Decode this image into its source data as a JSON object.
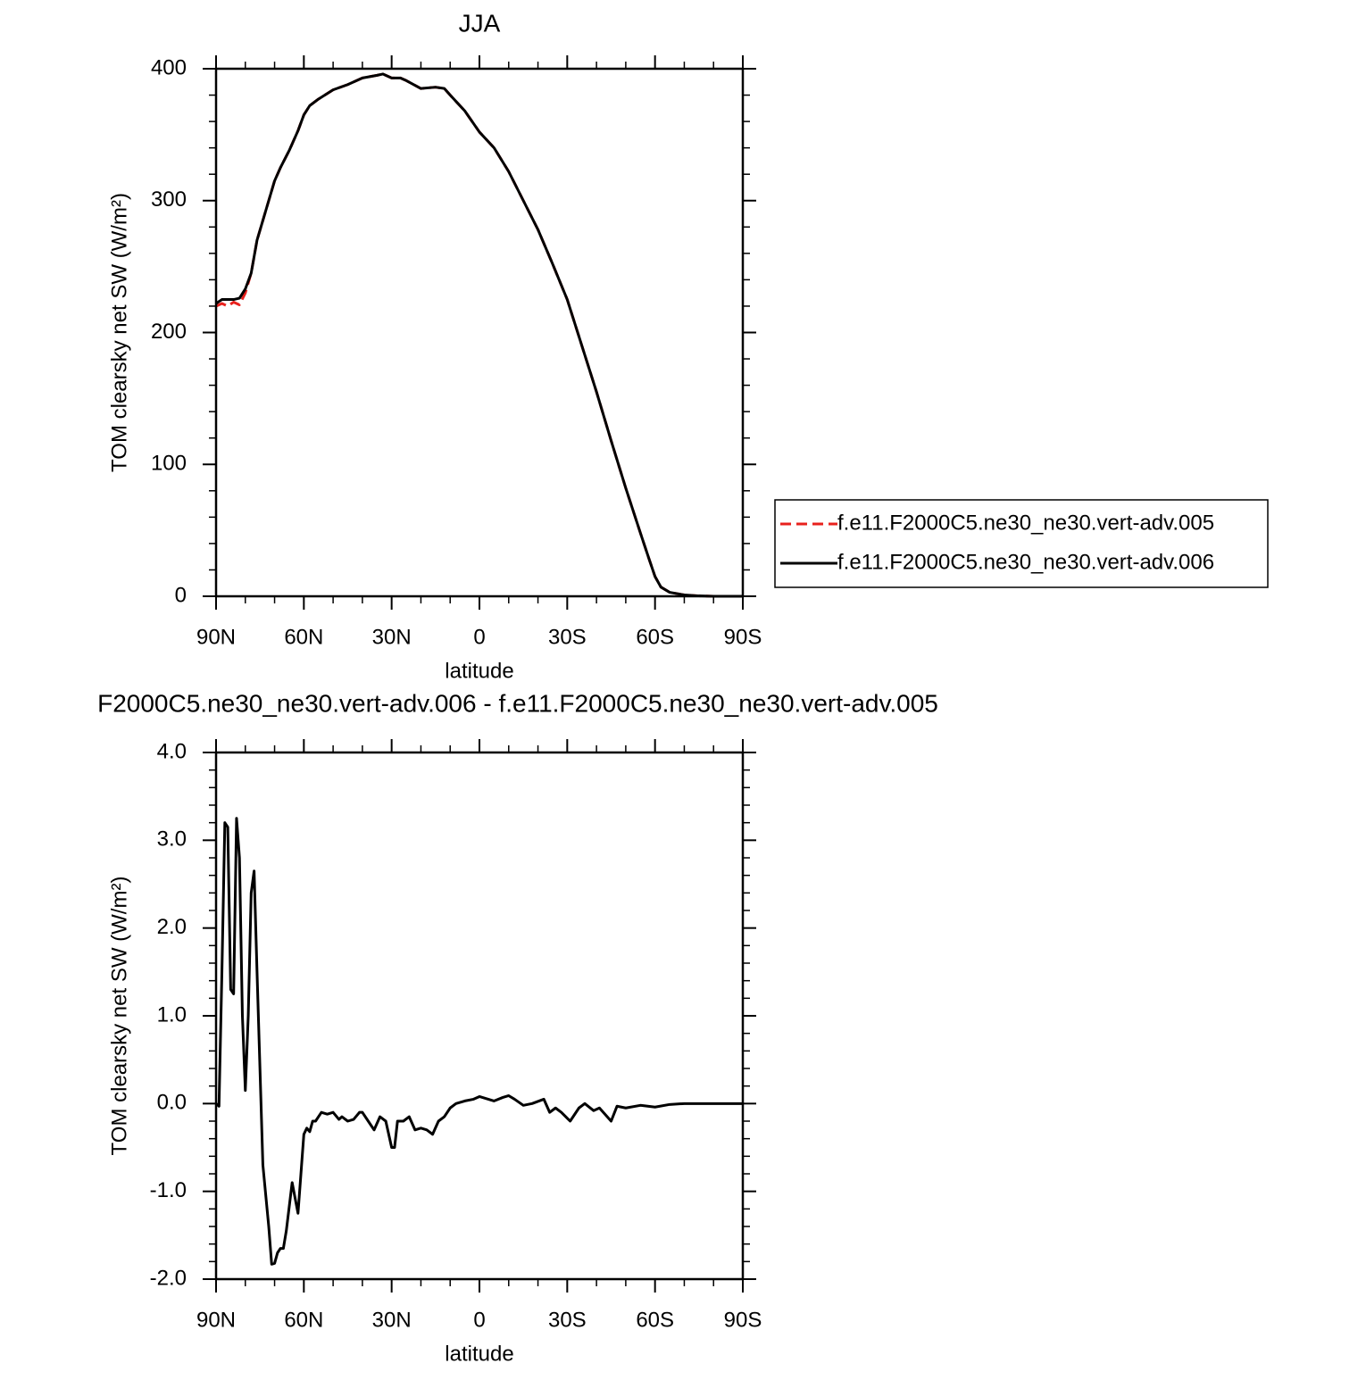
{
  "chart_data": [
    {
      "type": "line",
      "title": "JJA",
      "xlabel": "latitude",
      "ylabel": "TOM clearsky net SW (W/m²)",
      "x": [
        90,
        88,
        86,
        84,
        82,
        80,
        78,
        76,
        74,
        72,
        70,
        68,
        65,
        62,
        60,
        58,
        55,
        50,
        45,
        40,
        35,
        33,
        30,
        27,
        25,
        20,
        15,
        12,
        10,
        5,
        0,
        -5,
        -10,
        -15,
        -20,
        -25,
        -30,
        -35,
        -40,
        -45,
        -50,
        -55,
        -58,
        -60,
        -62,
        -65,
        -70,
        -75,
        -80,
        -85,
        -90
      ],
      "series": [
        {
          "name": "f.e11.F2000C5.ne30_ne30.vert-adv.005",
          "color": "#e8211d",
          "dashed": true,
          "values": [
            220,
            222,
            220,
            223,
            221,
            230,
            245,
            270,
            285,
            300,
            315,
            325,
            338,
            353,
            365,
            372,
            377,
            384,
            388,
            393,
            395,
            396,
            393,
            393,
            391,
            385,
            386,
            385,
            380,
            368,
            352,
            340,
            322,
            300,
            278,
            252,
            225,
            190,
            155,
            118,
            82,
            48,
            28,
            15,
            7,
            3,
            1,
            0.3,
            0,
            0,
            0
          ]
        },
        {
          "name": "f.e11.F2000C5.ne30_ne30.vert-adv.006",
          "color": "#000000",
          "dashed": false,
          "values": [
            222,
            225,
            225,
            225,
            226,
            233,
            245,
            270,
            285,
            300,
            315,
            325,
            338,
            353,
            365,
            372,
            377,
            384,
            388,
            393,
            395,
            396,
            393,
            393,
            391,
            385,
            386,
            385,
            380,
            368,
            352,
            340,
            322,
            300,
            278,
            252,
            225,
            190,
            155,
            118,
            82,
            48,
            28,
            15,
            7,
            3,
            1,
            0.3,
            0,
            0,
            0
          ]
        }
      ],
      "xlim": [
        90,
        -90
      ],
      "xticks": [
        {
          "value": 90,
          "label": "90N"
        },
        {
          "value": 60,
          "label": "60N"
        },
        {
          "value": 30,
          "label": "30N"
        },
        0,
        {
          "value": -30,
          "label": "30S"
        },
        {
          "value": -60,
          "label": "60S"
        },
        {
          "value": -90,
          "label": "90S"
        }
      ],
      "ylim": [
        0,
        400
      ],
      "yticks": [
        0,
        100,
        200,
        300,
        400
      ],
      "legend": "right"
    },
    {
      "type": "line",
      "title": "F2000C5.ne30_ne30.vert-adv.006 - f.e11.F2000C5.ne30_ne30.vert-adv.005",
      "xlabel": "latitude",
      "ylabel": "TOM clearsky net SW (W/m²)",
      "x": [
        90,
        89,
        88,
        87,
        86,
        85,
        84,
        83,
        82,
        81,
        80,
        79,
        78,
        77,
        76,
        74,
        72,
        71,
        70,
        69,
        68,
        67,
        66,
        64,
        62,
        61,
        60,
        59,
        58,
        57,
        56,
        55,
        54,
        52,
        50,
        48,
        47,
        45,
        43,
        41,
        40,
        38,
        36,
        34,
        32,
        31,
        30,
        29,
        28,
        26,
        24,
        22,
        20,
        18,
        16,
        14,
        12,
        10,
        8,
        5,
        2,
        0,
        -3,
        -5,
        -8,
        -10,
        -12,
        -15,
        -18,
        -22,
        -24,
        -26,
        -28,
        -31,
        -34,
        -36,
        -39,
        -41,
        -45,
        -47,
        -50,
        -55,
        -60,
        -65,
        -70,
        -80,
        -90
      ],
      "values": [
        0,
        -0.03,
        1.5,
        3.2,
        3.15,
        1.3,
        1.25,
        3.25,
        2.8,
        1.0,
        0.15,
        1.0,
        2.4,
        2.65,
        1.5,
        -0.7,
        -1.4,
        -1.83,
        -1.82,
        -1.7,
        -1.65,
        -1.65,
        -1.45,
        -0.9,
        -1.25,
        -0.8,
        -0.35,
        -0.28,
        -0.32,
        -0.2,
        -0.2,
        -0.15,
        -0.1,
        -0.12,
        -0.1,
        -0.18,
        -0.15,
        -0.2,
        -0.18,
        -0.1,
        -0.1,
        -0.2,
        -0.3,
        -0.15,
        -0.2,
        -0.35,
        -0.5,
        -0.5,
        -0.2,
        -0.2,
        -0.15,
        -0.3,
        -0.28,
        -0.3,
        -0.35,
        -0.2,
        -0.15,
        -0.05,
        0,
        0.03,
        0.05,
        0.08,
        0.05,
        0.03,
        0.07,
        0.09,
        0.05,
        -0.02,
        0,
        0.05,
        -0.1,
        -0.05,
        -0.1,
        -0.2,
        -0.05,
        0,
        -0.08,
        -0.05,
        -0.2,
        -0.03,
        -0.05,
        -0.02,
        -0.04,
        -0.01,
        0,
        0,
        0
      ],
      "color": "#000000",
      "xlim": [
        90,
        -90
      ],
      "xticks": [
        {
          "value": 90,
          "label": "90N"
        },
        {
          "value": 60,
          "label": "60N"
        },
        {
          "value": 30,
          "label": "30N"
        },
        0,
        {
          "value": -30,
          "label": "30S"
        },
        {
          "value": -60,
          "label": "60S"
        },
        {
          "value": -90,
          "label": "90S"
        }
      ],
      "ylim": [
        -2,
        4
      ],
      "yticks": [
        {
          "value": -2,
          "label": "-2.0"
        },
        {
          "value": -1,
          "label": "-1.0"
        },
        {
          "value": 0,
          "label": "0.0"
        },
        {
          "value": 1,
          "label": "1.0"
        },
        {
          "value": 2,
          "label": "2.0"
        },
        {
          "value": 3,
          "label": "3.0"
        },
        {
          "value": 4,
          "label": "4.0"
        }
      ]
    }
  ]
}
